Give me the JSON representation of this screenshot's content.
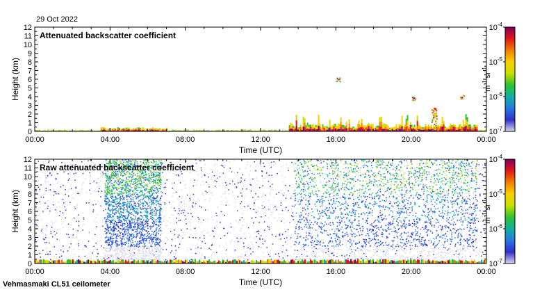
{
  "date": "29 Oct 2022",
  "instrument": "Vehmasmaki CL51 ceilometer",
  "colors": {
    "colormap": [
      "#d8d8ec",
      "#3030c8",
      "#2878e0",
      "#10b0a0",
      "#30c030",
      "#c8e000",
      "#f8d000",
      "#f08000",
      "#e01818",
      "#800060"
    ],
    "background": "#ffffff"
  },
  "chart_data": [
    {
      "type": "heatmap",
      "title": "Attenuated backscatter coefficient",
      "xlabel": "Time (UTC)",
      "ylabel": "Height (km)",
      "xlim": [
        0,
        24
      ],
      "ylim": [
        0,
        12
      ],
      "x_ticks": [
        0,
        4,
        8,
        12,
        16,
        20,
        24
      ],
      "x_tick_labels": [
        "00:00",
        "04:00",
        "08:00",
        "12:00",
        "16:00",
        "20:00",
        "00:00"
      ],
      "y_ticks": [
        0,
        1,
        2,
        3,
        4,
        5,
        6,
        7,
        8,
        9,
        10,
        11,
        12
      ],
      "y_tick_labels": [
        "0",
        "1",
        "2",
        "3",
        "4",
        "5",
        "6",
        "7",
        "8",
        "9",
        "10",
        "11",
        "12"
      ],
      "colorbar": {
        "scale": "log",
        "range": [
          1e-07,
          0.0001
        ],
        "ticks": [
          {
            "base": "10",
            "exp": "-4"
          },
          {
            "base": "10",
            "exp": "-5"
          },
          {
            "base": "10",
            "exp": "-6"
          },
          {
            "base": "10",
            "exp": "-7"
          }
        ],
        "unit_parts": [
          {
            "base": "m",
            "exp": "-1"
          },
          {
            "base": "sr",
            "exp": "-1"
          }
        ]
      },
      "features": [
        {
          "desc": "near-surface layer",
          "t_start": 0,
          "t_end": 24,
          "h_top": 0.2
        },
        {
          "desc": "boundary layer aerosol",
          "t_start": 3.5,
          "t_end": 7,
          "h_top": 0.5
        },
        {
          "desc": "low clouds",
          "t_start": 13.5,
          "t_end": 23.5,
          "h_top": 2.0
        },
        {
          "desc": "cloud patch",
          "t": 16.1,
          "h": 6.0
        },
        {
          "desc": "cloud patch",
          "t": 20.1,
          "h": 3.8
        },
        {
          "desc": "cloud patch",
          "t": 22.7,
          "h": 4.0
        },
        {
          "desc": "cloud column",
          "t": 21.2,
          "h": 2.8
        }
      ]
    },
    {
      "type": "heatmap",
      "title": "Raw attenuated backscatter coefficient",
      "xlabel": "Time (UTC)",
      "ylabel": "Height (km)",
      "xlim": [
        0,
        24
      ],
      "ylim": [
        0,
        12
      ],
      "x_ticks": [
        0,
        4,
        8,
        12,
        16,
        20,
        24
      ],
      "x_tick_labels": [
        "00:00",
        "04:00",
        "08:00",
        "12:00",
        "16:00",
        "20:00",
        "00:00"
      ],
      "y_ticks": [
        0,
        1,
        2,
        3,
        4,
        5,
        6,
        7,
        8,
        9,
        10,
        11,
        12
      ],
      "y_tick_labels": [
        "0",
        "1",
        "2",
        "3",
        "4",
        "5",
        "6",
        "7",
        "8",
        "9",
        "10",
        "11",
        "12"
      ],
      "colorbar": {
        "scale": "log",
        "range": [
          1e-07,
          0.0001
        ],
        "ticks": [
          {
            "base": "10",
            "exp": "-4"
          },
          {
            "base": "10",
            "exp": "-5"
          },
          {
            "base": "10",
            "exp": "-6"
          },
          {
            "base": "10",
            "exp": "-7"
          }
        ],
        "unit_parts": [
          {
            "base": "m",
            "exp": "-1"
          },
          {
            "base": "sr",
            "exp": "-1"
          }
        ]
      },
      "features": [
        {
          "desc": "noise field",
          "t_start": 0,
          "t_end": 24,
          "h_top": 12
        },
        {
          "desc": "strong noise",
          "t_start": 3.7,
          "t_end": 6.7,
          "h_top": 12
        },
        {
          "desc": "strong noise",
          "t_start": 13.8,
          "t_end": 23.5,
          "h_top": 12
        },
        {
          "desc": "near-surface layer",
          "t_start": 0,
          "t_end": 24,
          "h_top": 0.5
        }
      ]
    }
  ]
}
